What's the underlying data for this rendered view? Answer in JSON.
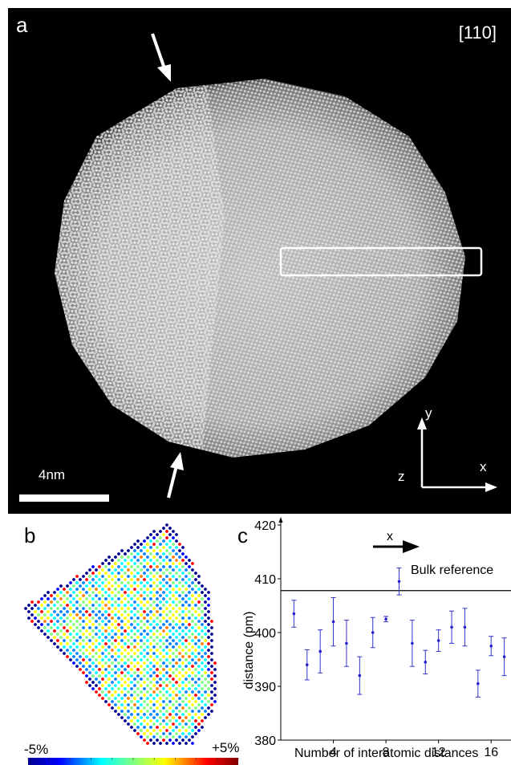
{
  "panel_a": {
    "letter": "a",
    "zone_axis": "[110]",
    "scale_bar_label": "4nm",
    "axis_labels": {
      "y": "y",
      "z": "z",
      "x": "x"
    }
  },
  "panel_b": {
    "letter": "b",
    "colorbar_min": "-5%",
    "colorbar_max": "+5%"
  },
  "panel_c": {
    "letter": "c",
    "arrow_label": "x"
  },
  "chart_data": {
    "type": "scatter",
    "xlabel": "Number of interatomic distances",
    "ylabel": "distance (pm)",
    "xlim": [
      0,
      18
    ],
    "ylim": [
      380,
      420
    ],
    "xticks": [
      4,
      8,
      12,
      16
    ],
    "yticks": [
      380,
      390,
      400,
      410,
      420
    ],
    "reference_line": {
      "label": "Bulk reference",
      "value": 407.8
    },
    "points": [
      {
        "x": 1,
        "y": 403.5,
        "err": 2.5
      },
      {
        "x": 2,
        "y": 394.0,
        "err": 2.8
      },
      {
        "x": 3,
        "y": 396.5,
        "err": 4.0
      },
      {
        "x": 4,
        "y": 402.0,
        "err": 4.5
      },
      {
        "x": 5,
        "y": 398.0,
        "err": 4.3
      },
      {
        "x": 6,
        "y": 392.0,
        "err": 3.5
      },
      {
        "x": 7,
        "y": 400.0,
        "err": 2.8
      },
      {
        "x": 8,
        "y": 402.5,
        "err": 0.5
      },
      {
        "x": 9,
        "y": 409.5,
        "err": 2.5
      },
      {
        "x": 10,
        "y": 398.0,
        "err": 4.3
      },
      {
        "x": 11,
        "y": 394.5,
        "err": 2.2
      },
      {
        "x": 12,
        "y": 398.5,
        "err": 2.0
      },
      {
        "x": 13,
        "y": 401.0,
        "err": 3.0
      },
      {
        "x": 14,
        "y": 401.0,
        "err": 3.5
      },
      {
        "x": 15,
        "y": 390.5,
        "err": 2.5
      },
      {
        "x": 16,
        "y": 397.5,
        "err": 1.8
      },
      {
        "x": 17,
        "y": 395.5,
        "err": 3.5
      }
    ]
  }
}
